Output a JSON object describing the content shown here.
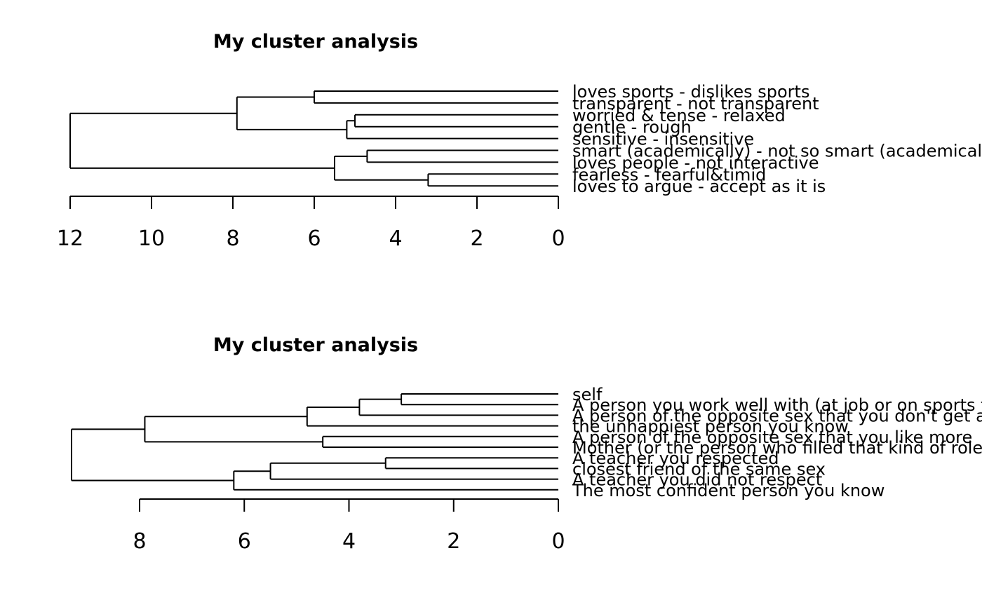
{
  "chart_data": [
    {
      "type": "dendrogram",
      "title": "My cluster analysis",
      "xlim": [
        12,
        0
      ],
      "ticks": [
        12,
        10,
        8,
        6,
        4,
        2,
        0
      ],
      "leaves": [
        "loves sports - dislikes sports",
        "transparent - not transparent",
        "worried & tense - relaxed",
        "gentle - rough",
        "sensitive - insensitive",
        "smart (academically) - not so smart (academically)",
        "loves people - not interactive",
        "fearless - fearful&timid",
        "loves to argue - accept as it is"
      ],
      "merges": [
        {
          "left": 2,
          "right": 3,
          "height": 5.0
        },
        {
          "left": 7,
          "right": 8,
          "height": 3.2
        },
        {
          "left": 0,
          "right": 1,
          "height": 6.0
        },
        {
          "left": 5,
          "right": 6,
          "height": 4.7
        },
        {
          "left": "m0",
          "right": 4,
          "height": 5.2
        },
        {
          "left": "m3",
          "right": "m1",
          "height": 5.5
        },
        {
          "left": "m2",
          "right": "m4",
          "height": 7.9
        },
        {
          "left": "m6",
          "right": "m5",
          "height": 12.0
        }
      ]
    },
    {
      "type": "dendrogram",
      "title": "My cluster analysis",
      "xlim": [
        8,
        0
      ],
      "ticks": [
        8,
        6,
        4,
        2,
        0
      ],
      "leaves": [
        "self",
        "A person you work well with (at job or on sports team)",
        "A person of the opposite sex that you don't get along with",
        "the unhappiest person you know",
        "A person of the opposite sex that you like more",
        "Mother (or the person who filled that kind of role)",
        "A teacher you respected",
        "closest friend of the same sex",
        "A teacher you did not respect",
        "The most confident person you know"
      ],
      "merges": [
        {
          "left": 0,
          "right": 1,
          "height": 3.0
        },
        {
          "left": 6,
          "right": 7,
          "height": 3.3
        },
        {
          "left": "m0",
          "right": 2,
          "height": 3.8
        },
        {
          "left": 4,
          "right": 5,
          "height": 4.5
        },
        {
          "left": "m2",
          "right": 3,
          "height": 4.8
        },
        {
          "left": "m1",
          "right": 8,
          "height": 5.5
        },
        {
          "left": "m5",
          "right": 9,
          "height": 6.2
        },
        {
          "left": "m4",
          "right": "m3",
          "height": 7.9
        },
        {
          "left": "m7",
          "right": "m6",
          "height": 9.3
        }
      ]
    }
  ]
}
